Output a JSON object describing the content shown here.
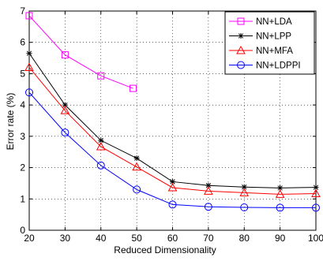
{
  "chart_data": {
    "type": "line",
    "title": "",
    "xlabel": "Reduced Dimensionality",
    "ylabel": "Error rate (%)",
    "xlim": [
      20,
      100
    ],
    "ylim": [
      0,
      7
    ],
    "xticks": [
      20,
      30,
      40,
      50,
      60,
      70,
      80,
      90,
      100
    ],
    "yticks": [
      0,
      1,
      2,
      3,
      4,
      5,
      6,
      7
    ],
    "grid": true,
    "legend_position": "top-right",
    "x": [
      20,
      30,
      40,
      50,
      60,
      70,
      80,
      90,
      100
    ],
    "series": [
      {
        "name": "NN+LDA",
        "color": "#ff00ff",
        "marker": "square",
        "x": [
          20,
          30,
          40,
          49
        ],
        "values": [
          6.85,
          5.6,
          4.93,
          4.53
        ]
      },
      {
        "name": "NN+LPP",
        "color": "#000000",
        "marker": "star",
        "x": [
          20,
          30,
          40,
          50,
          60,
          70,
          80,
          90,
          100
        ],
        "values": [
          5.65,
          4.0,
          2.87,
          2.3,
          1.55,
          1.43,
          1.38,
          1.35,
          1.37
        ]
      },
      {
        "name": "NN+MFA",
        "color": "#ff0000",
        "marker": "triangle",
        "x": [
          20,
          30,
          40,
          50,
          60,
          70,
          80,
          90,
          100
        ],
        "values": [
          5.2,
          3.82,
          2.67,
          2.02,
          1.36,
          1.25,
          1.2,
          1.15,
          1.17
        ]
      },
      {
        "name": "NN+LDPPI",
        "color": "#0000ff",
        "marker": "circle",
        "x": [
          20,
          30,
          40,
          50,
          60,
          70,
          80,
          90,
          100
        ],
        "values": [
          4.4,
          3.12,
          2.07,
          1.3,
          0.82,
          0.75,
          0.73,
          0.72,
          0.72
        ]
      }
    ]
  }
}
